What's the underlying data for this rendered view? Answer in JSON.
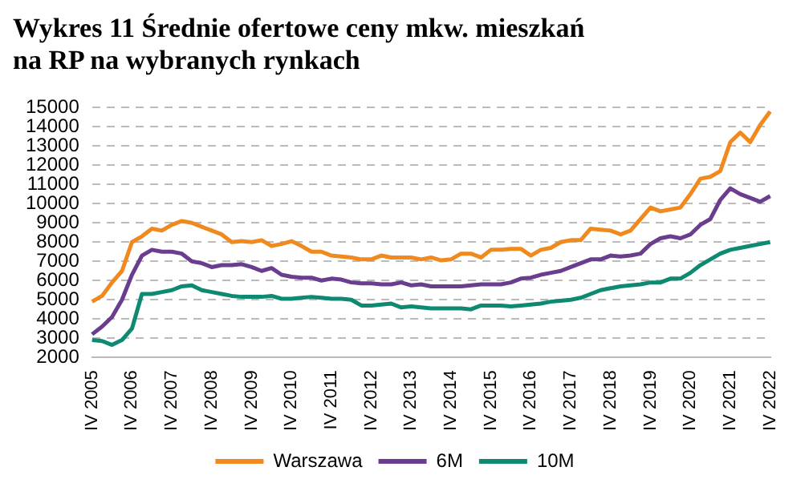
{
  "chart_data": {
    "type": "line",
    "title": "Wykres 11 Średnie ofertowe ceny mkw. mieszkań na RP na wybranych rynkach",
    "categories": [
      "IV 2005",
      null,
      null,
      null,
      "IV 2006",
      null,
      null,
      null,
      "IV 2007",
      null,
      null,
      null,
      "IV 2008",
      null,
      null,
      null,
      "IV 2009",
      null,
      null,
      null,
      "IV 2010",
      null,
      null,
      null,
      "IV 2011",
      null,
      null,
      null,
      "IV 2012",
      null,
      null,
      null,
      "IV 2013",
      null,
      null,
      null,
      "IV 2014",
      null,
      null,
      null,
      "IV 2015",
      null,
      null,
      null,
      "IV 2016",
      null,
      null,
      null,
      "IV 2017",
      null,
      null,
      null,
      "IV 2018",
      null,
      null,
      null,
      "IV 2019",
      null,
      null,
      null,
      "IV 2020",
      null,
      null,
      null,
      "IV 2021",
      null,
      null,
      null,
      "IV 2022"
    ],
    "series": [
      {
        "name": "Warszawa",
        "color": "#f08a1e",
        "values": [
          4900,
          5200,
          5900,
          6500,
          8000,
          8300,
          8700,
          8600,
          8900,
          9100,
          9000,
          8800,
          8600,
          8400,
          8000,
          8050,
          8000,
          8100,
          7800,
          7900,
          8050,
          7800,
          7500,
          7500,
          7300,
          7250,
          7200,
          7100,
          7100,
          7300,
          7200,
          7200,
          7200,
          7100,
          7200,
          7050,
          7100,
          7400,
          7400,
          7200,
          7600,
          7600,
          7650,
          7650,
          7300,
          7600,
          7700,
          8000,
          8100,
          8100,
          8700,
          8650,
          8600,
          8400,
          8600,
          9200,
          9800,
          9600,
          9700,
          9800,
          10500,
          11300,
          11400,
          11700,
          13200,
          13700,
          13200,
          14100,
          14800
        ]
      },
      {
        "name": "6M",
        "color": "#6a3d8f",
        "values": [
          3200,
          3600,
          4100,
          5000,
          6300,
          7300,
          7600,
          7500,
          7500,
          7400,
          7000,
          6900,
          6700,
          6800,
          6800,
          6850,
          6700,
          6500,
          6650,
          6300,
          6200,
          6150,
          6150,
          6000,
          6100,
          6050,
          5900,
          5850,
          5850,
          5800,
          5800,
          5900,
          5750,
          5800,
          5700,
          5700,
          5700,
          5700,
          5750,
          5800,
          5800,
          5800,
          5900,
          6100,
          6150,
          6300,
          6400,
          6500,
          6700,
          6900,
          7100,
          7100,
          7300,
          7250,
          7300,
          7400,
          7900,
          8200,
          8300,
          8200,
          8400,
          8900,
          9200,
          10200,
          10800,
          10500,
          10300,
          10100,
          10400
        ]
      },
      {
        "name": "10M",
        "color": "#0f8a72",
        "values": [
          2900,
          2850,
          2650,
          2900,
          3500,
          5300,
          5300,
          5400,
          5500,
          5700,
          5750,
          5500,
          5400,
          5300,
          5200,
          5150,
          5150,
          5150,
          5200,
          5050,
          5050,
          5100,
          5150,
          5100,
          5050,
          5050,
          5000,
          4700,
          4700,
          4750,
          4800,
          4600,
          4650,
          4600,
          4550,
          4550,
          4550,
          4550,
          4500,
          4700,
          4700,
          4700,
          4650,
          4700,
          4750,
          4800,
          4900,
          4950,
          5000,
          5100,
          5300,
          5500,
          5600,
          5700,
          5750,
          5800,
          5900,
          5900,
          6100,
          6100,
          6400,
          6800,
          7100,
          7400,
          7600,
          7700,
          7800,
          7900,
          8000
        ]
      }
    ],
    "ylim": [
      2000,
      15000
    ],
    "yticks": [
      2000,
      3000,
      4000,
      5000,
      6000,
      7000,
      8000,
      9000,
      10000,
      11000,
      12000,
      13000,
      14000,
      15000
    ],
    "grid": "y",
    "legend": "bottom",
    "marker": "none",
    "line_style": "solid"
  }
}
